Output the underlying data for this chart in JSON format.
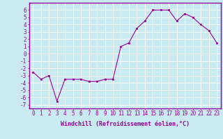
{
  "x": [
    0,
    1,
    2,
    3,
    4,
    5,
    6,
    7,
    8,
    9,
    10,
    11,
    12,
    13,
    14,
    15,
    16,
    17,
    18,
    19,
    20,
    21,
    22,
    23
  ],
  "y": [
    -2.5,
    -3.5,
    -3.0,
    -6.5,
    -3.5,
    -3.5,
    -3.5,
    -3.8,
    -3.8,
    -3.5,
    -3.5,
    1.0,
    1.5,
    3.5,
    4.5,
    6.0,
    6.0,
    6.0,
    4.5,
    5.5,
    5.0,
    4.0,
    3.2,
    1.5
  ],
  "xlabel": "Windchill (Refroidissement éolien,°C)",
  "xlim": [
    -0.5,
    23.5
  ],
  "ylim": [
    -7.5,
    7.0
  ],
  "yticks": [
    -7,
    -6,
    -5,
    -4,
    -3,
    -2,
    -1,
    0,
    1,
    2,
    3,
    4,
    5,
    6
  ],
  "xticks": [
    0,
    1,
    2,
    3,
    4,
    5,
    6,
    7,
    8,
    9,
    10,
    11,
    12,
    13,
    14,
    15,
    16,
    17,
    18,
    19,
    20,
    21,
    22,
    23
  ],
  "line_color": "#990099",
  "marker_color": "#990099",
  "bg_color": "#c8eaf0",
  "grid_color": "#ffffff",
  "border_color": "#990099",
  "xlabel_fontsize": 6.0,
  "tick_fontsize": 5.5
}
